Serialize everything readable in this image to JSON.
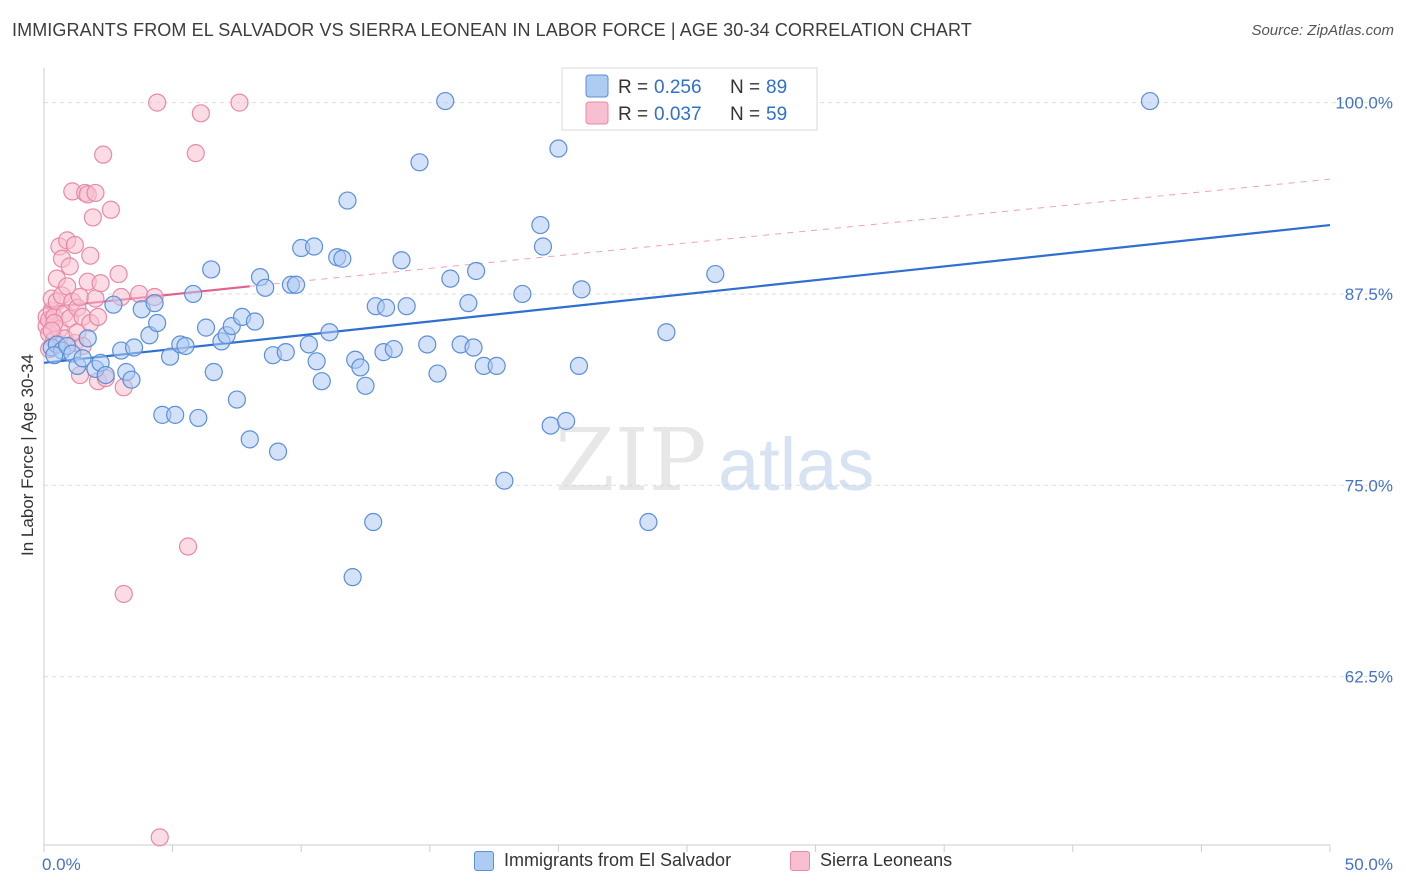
{
  "header": {
    "title": "IMMIGRANTS FROM EL SALVADOR VS SIERRA LEONEAN IN LABOR FORCE | AGE 30-34 CORRELATION CHART",
    "source": "Source: ZipAtlas.com"
  },
  "watermark": {
    "zip": "ZIP",
    "atlas": "atlas"
  },
  "legend": {
    "rows": [
      {
        "r_label": "R =",
        "r_value": "0.256",
        "n_label": "N =",
        "n_value": "89"
      },
      {
        "r_label": "R =",
        "r_value": "0.037",
        "n_label": "N =",
        "n_value": "59"
      }
    ]
  },
  "bottom_legend": {
    "items": [
      {
        "label": "Immigrants from El Salvador"
      },
      {
        "label": "Sierra Leoneans"
      }
    ]
  },
  "colors": {
    "blue_fill": "#aecbf2",
    "blue_stroke": "#5b8fd9",
    "blue_line": "#2f6fcf",
    "pink_fill": "#f7bfd0",
    "pink_stroke": "#e889a8",
    "pink_line": "#e0638e",
    "tick_label": "#4472c4",
    "grid": "#dddddd"
  },
  "chart_data": {
    "type": "scatter",
    "title": "IMMIGRANTS FROM EL SALVADOR VS SIERRA LEONEAN IN LABOR FORCE | AGE 30-34 CORRELATION CHART",
    "xlabel": "",
    "ylabel": "In Labor Force | Age 30-34",
    "xlim": [
      0,
      50
    ],
    "ylim": [
      51.5,
      102
    ],
    "x_tick_labels": [
      "0.0%",
      "50.0%"
    ],
    "y_ticks": [
      62.5,
      75.0,
      87.5,
      100.0
    ],
    "y_tick_labels": [
      "62.5%",
      "75.0%",
      "87.5%",
      "100.0%"
    ],
    "grid": true,
    "legend_position": "top-center",
    "series": [
      {
        "name": "Immigrants from El Salvador",
        "color": "#5b8fd9",
        "trend": {
          "x": [
            0,
            50
          ],
          "y": [
            83.0,
            92.0
          ],
          "style": "solid"
        },
        "points": [
          [
            0.3,
            84.0
          ],
          [
            0.5,
            84.2
          ],
          [
            0.7,
            83.8
          ],
          [
            0.9,
            84.1
          ],
          [
            1.1,
            83.6
          ],
          [
            1.3,
            82.8
          ],
          [
            1.5,
            83.3
          ],
          [
            1.7,
            84.6
          ],
          [
            2.0,
            82.6
          ],
          [
            2.2,
            83.0
          ],
          [
            2.4,
            82.2
          ],
          [
            2.7,
            86.8
          ],
          [
            3.0,
            83.8
          ],
          [
            3.2,
            82.4
          ],
          [
            3.4,
            81.9
          ],
          [
            3.5,
            84.0
          ],
          [
            3.8,
            86.5
          ],
          [
            4.1,
            84.8
          ],
          [
            4.3,
            86.9
          ],
          [
            4.4,
            85.6
          ],
          [
            4.6,
            79.6
          ],
          [
            4.9,
            83.4
          ],
          [
            5.1,
            79.6
          ],
          [
            5.3,
            84.2
          ],
          [
            5.5,
            84.1
          ],
          [
            5.8,
            87.5
          ],
          [
            6.0,
            79.4
          ],
          [
            6.3,
            85.3
          ],
          [
            6.5,
            89.1
          ],
          [
            6.6,
            82.4
          ],
          [
            6.9,
            84.4
          ],
          [
            7.1,
            84.8
          ],
          [
            7.3,
            85.4
          ],
          [
            7.5,
            80.6
          ],
          [
            7.7,
            86.0
          ],
          [
            8.0,
            78.0
          ],
          [
            8.2,
            85.7
          ],
          [
            8.4,
            88.6
          ],
          [
            8.6,
            87.9
          ],
          [
            8.9,
            83.5
          ],
          [
            9.1,
            77.2
          ],
          [
            9.4,
            83.7
          ],
          [
            9.6,
            88.1
          ],
          [
            9.8,
            88.1
          ],
          [
            10.0,
            90.5
          ],
          [
            10.3,
            84.2
          ],
          [
            10.5,
            90.6
          ],
          [
            10.6,
            83.1
          ],
          [
            10.8,
            81.8
          ],
          [
            11.1,
            85.0
          ],
          [
            11.4,
            89.9
          ],
          [
            11.6,
            89.8
          ],
          [
            11.8,
            93.6
          ],
          [
            12.0,
            69.0
          ],
          [
            12.1,
            83.2
          ],
          [
            12.3,
            82.7
          ],
          [
            12.5,
            81.5
          ],
          [
            12.8,
            72.6
          ],
          [
            12.9,
            86.7
          ],
          [
            13.2,
            83.7
          ],
          [
            13.3,
            86.6
          ],
          [
            13.6,
            83.9
          ],
          [
            13.9,
            89.7
          ],
          [
            14.1,
            86.7
          ],
          [
            14.6,
            96.1
          ],
          [
            14.9,
            84.2
          ],
          [
            15.3,
            82.3
          ],
          [
            15.6,
            100.1
          ],
          [
            15.8,
            88.5
          ],
          [
            16.2,
            84.2
          ],
          [
            16.5,
            86.9
          ],
          [
            16.7,
            84.0
          ],
          [
            16.8,
            89.0
          ],
          [
            17.1,
            82.8
          ],
          [
            17.6,
            82.8
          ],
          [
            17.9,
            75.3
          ],
          [
            18.6,
            87.5
          ],
          [
            19.3,
            92.0
          ],
          [
            19.4,
            90.6
          ],
          [
            19.7,
            78.9
          ],
          [
            20.0,
            97.0
          ],
          [
            20.3,
            79.2
          ],
          [
            20.8,
            82.8
          ],
          [
            20.9,
            87.8
          ],
          [
            23.5,
            72.6
          ],
          [
            24.2,
            85.0
          ],
          [
            26.1,
            88.8
          ],
          [
            43.0,
            100.1
          ],
          [
            0.4,
            83.5
          ]
        ]
      },
      {
        "name": "Sierra Leoneans",
        "color": "#e889a8",
        "trend": {
          "x": [
            0,
            8
          ],
          "y": [
            86.6,
            88.0
          ],
          "style": "solid",
          "extended_to_x": 50,
          "extended_y": 95.0,
          "extended_style": "dashed"
        },
        "points": [
          [
            0.1,
            85.4
          ],
          [
            0.1,
            86.0
          ],
          [
            0.2,
            84.9
          ],
          [
            0.2,
            85.8
          ],
          [
            0.3,
            86.4
          ],
          [
            0.3,
            87.2
          ],
          [
            0.4,
            84.5
          ],
          [
            0.4,
            86.0
          ],
          [
            0.5,
            88.5
          ],
          [
            0.5,
            87.0
          ],
          [
            0.6,
            90.6
          ],
          [
            0.6,
            85.2
          ],
          [
            0.7,
            89.8
          ],
          [
            0.7,
            87.4
          ],
          [
            0.8,
            86.2
          ],
          [
            0.8,
            84.6
          ],
          [
            0.9,
            91.0
          ],
          [
            0.9,
            88.0
          ],
          [
            1.0,
            89.3
          ],
          [
            1.0,
            85.9
          ],
          [
            1.1,
            94.2
          ],
          [
            1.1,
            87.0
          ],
          [
            1.2,
            90.7
          ],
          [
            1.2,
            84.3
          ],
          [
            1.3,
            86.6
          ],
          [
            1.3,
            85.0
          ],
          [
            1.4,
            87.3
          ],
          [
            1.5,
            86.0
          ],
          [
            1.5,
            84.1
          ],
          [
            1.6,
            94.1
          ],
          [
            1.7,
            94.0
          ],
          [
            1.7,
            88.3
          ],
          [
            1.8,
            85.6
          ],
          [
            1.8,
            90.0
          ],
          [
            1.9,
            92.5
          ],
          [
            2.0,
            94.1
          ],
          [
            2.0,
            87.2
          ],
          [
            2.1,
            86.0
          ],
          [
            2.1,
            81.8
          ],
          [
            2.2,
            88.2
          ],
          [
            2.3,
            96.6
          ],
          [
            2.4,
            82.0
          ],
          [
            2.6,
            93.0
          ],
          [
            2.9,
            88.8
          ],
          [
            3.0,
            87.3
          ],
          [
            3.1,
            81.4
          ],
          [
            3.1,
            67.9
          ],
          [
            3.7,
            87.5
          ],
          [
            4.3,
            87.3
          ],
          [
            4.4,
            100.0
          ],
          [
            4.5,
            52.0
          ],
          [
            5.6,
            71.0
          ],
          [
            5.9,
            96.7
          ],
          [
            6.1,
            99.3
          ],
          [
            7.6,
            100.0
          ],
          [
            0.2,
            83.9
          ],
          [
            0.4,
            85.6
          ],
          [
            0.3,
            85.1
          ],
          [
            1.4,
            82.2
          ]
        ]
      }
    ]
  }
}
